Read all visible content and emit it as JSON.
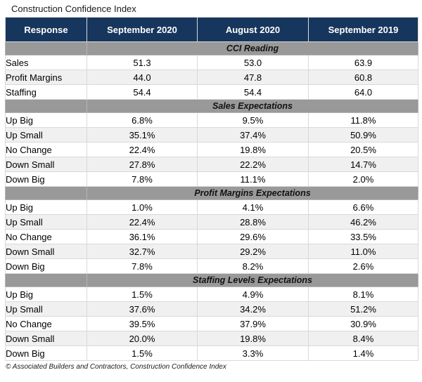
{
  "title": "Construction Confidence Index",
  "footer": "© Associated Builders and Contractors, Construction Confidence Index",
  "colors": {
    "header_bg": "#17365d",
    "header_text": "#ffffff",
    "section_bg": "#999999",
    "stripe_bg": "#f0f0f0",
    "border": "#d9d9d9"
  },
  "chart_data": {
    "type": "table",
    "title": "Construction Confidence Index",
    "columns": [
      "Response",
      "September 2020",
      "August 2020",
      "September 2019"
    ],
    "sections": [
      {
        "label": "CCI Reading",
        "rows": [
          [
            "Sales",
            "51.3",
            "53.0",
            "63.9"
          ],
          [
            "Profit Margins",
            "44.0",
            "47.8",
            "60.8"
          ],
          [
            "Staffing",
            "54.4",
            "54.4",
            "64.0"
          ]
        ]
      },
      {
        "label": "Sales Expectations",
        "rows": [
          [
            "Up Big",
            "6.8%",
            "9.5%",
            "11.8%"
          ],
          [
            "Up Small",
            "35.1%",
            "37.4%",
            "50.9%"
          ],
          [
            "No Change",
            "22.4%",
            "19.8%",
            "20.5%"
          ],
          [
            "Down Small",
            "27.8%",
            "22.2%",
            "14.7%"
          ],
          [
            "Down Big",
            "7.8%",
            "11.1%",
            "2.0%"
          ]
        ]
      },
      {
        "label": "Profit Margins Expectations",
        "rows": [
          [
            "Up Big",
            "1.0%",
            "4.1%",
            "6.6%"
          ],
          [
            "Up Small",
            "22.4%",
            "28.8%",
            "46.2%"
          ],
          [
            "No Change",
            "36.1%",
            "29.6%",
            "33.5%"
          ],
          [
            "Down Small",
            "32.7%",
            "29.2%",
            "11.0%"
          ],
          [
            "Down Big",
            "7.8%",
            "8.2%",
            "2.6%"
          ]
        ]
      },
      {
        "label": "Staffing Levels Expectations",
        "rows": [
          [
            "Up Big",
            "1.5%",
            "4.9%",
            "8.1%"
          ],
          [
            "Up Small",
            "37.6%",
            "34.2%",
            "51.2%"
          ],
          [
            "No Change",
            "39.5%",
            "37.9%",
            "30.9%"
          ],
          [
            "Down Small",
            "20.0%",
            "19.8%",
            "8.4%"
          ],
          [
            "Down Big",
            "1.5%",
            "3.3%",
            "1.4%"
          ]
        ]
      }
    ]
  }
}
